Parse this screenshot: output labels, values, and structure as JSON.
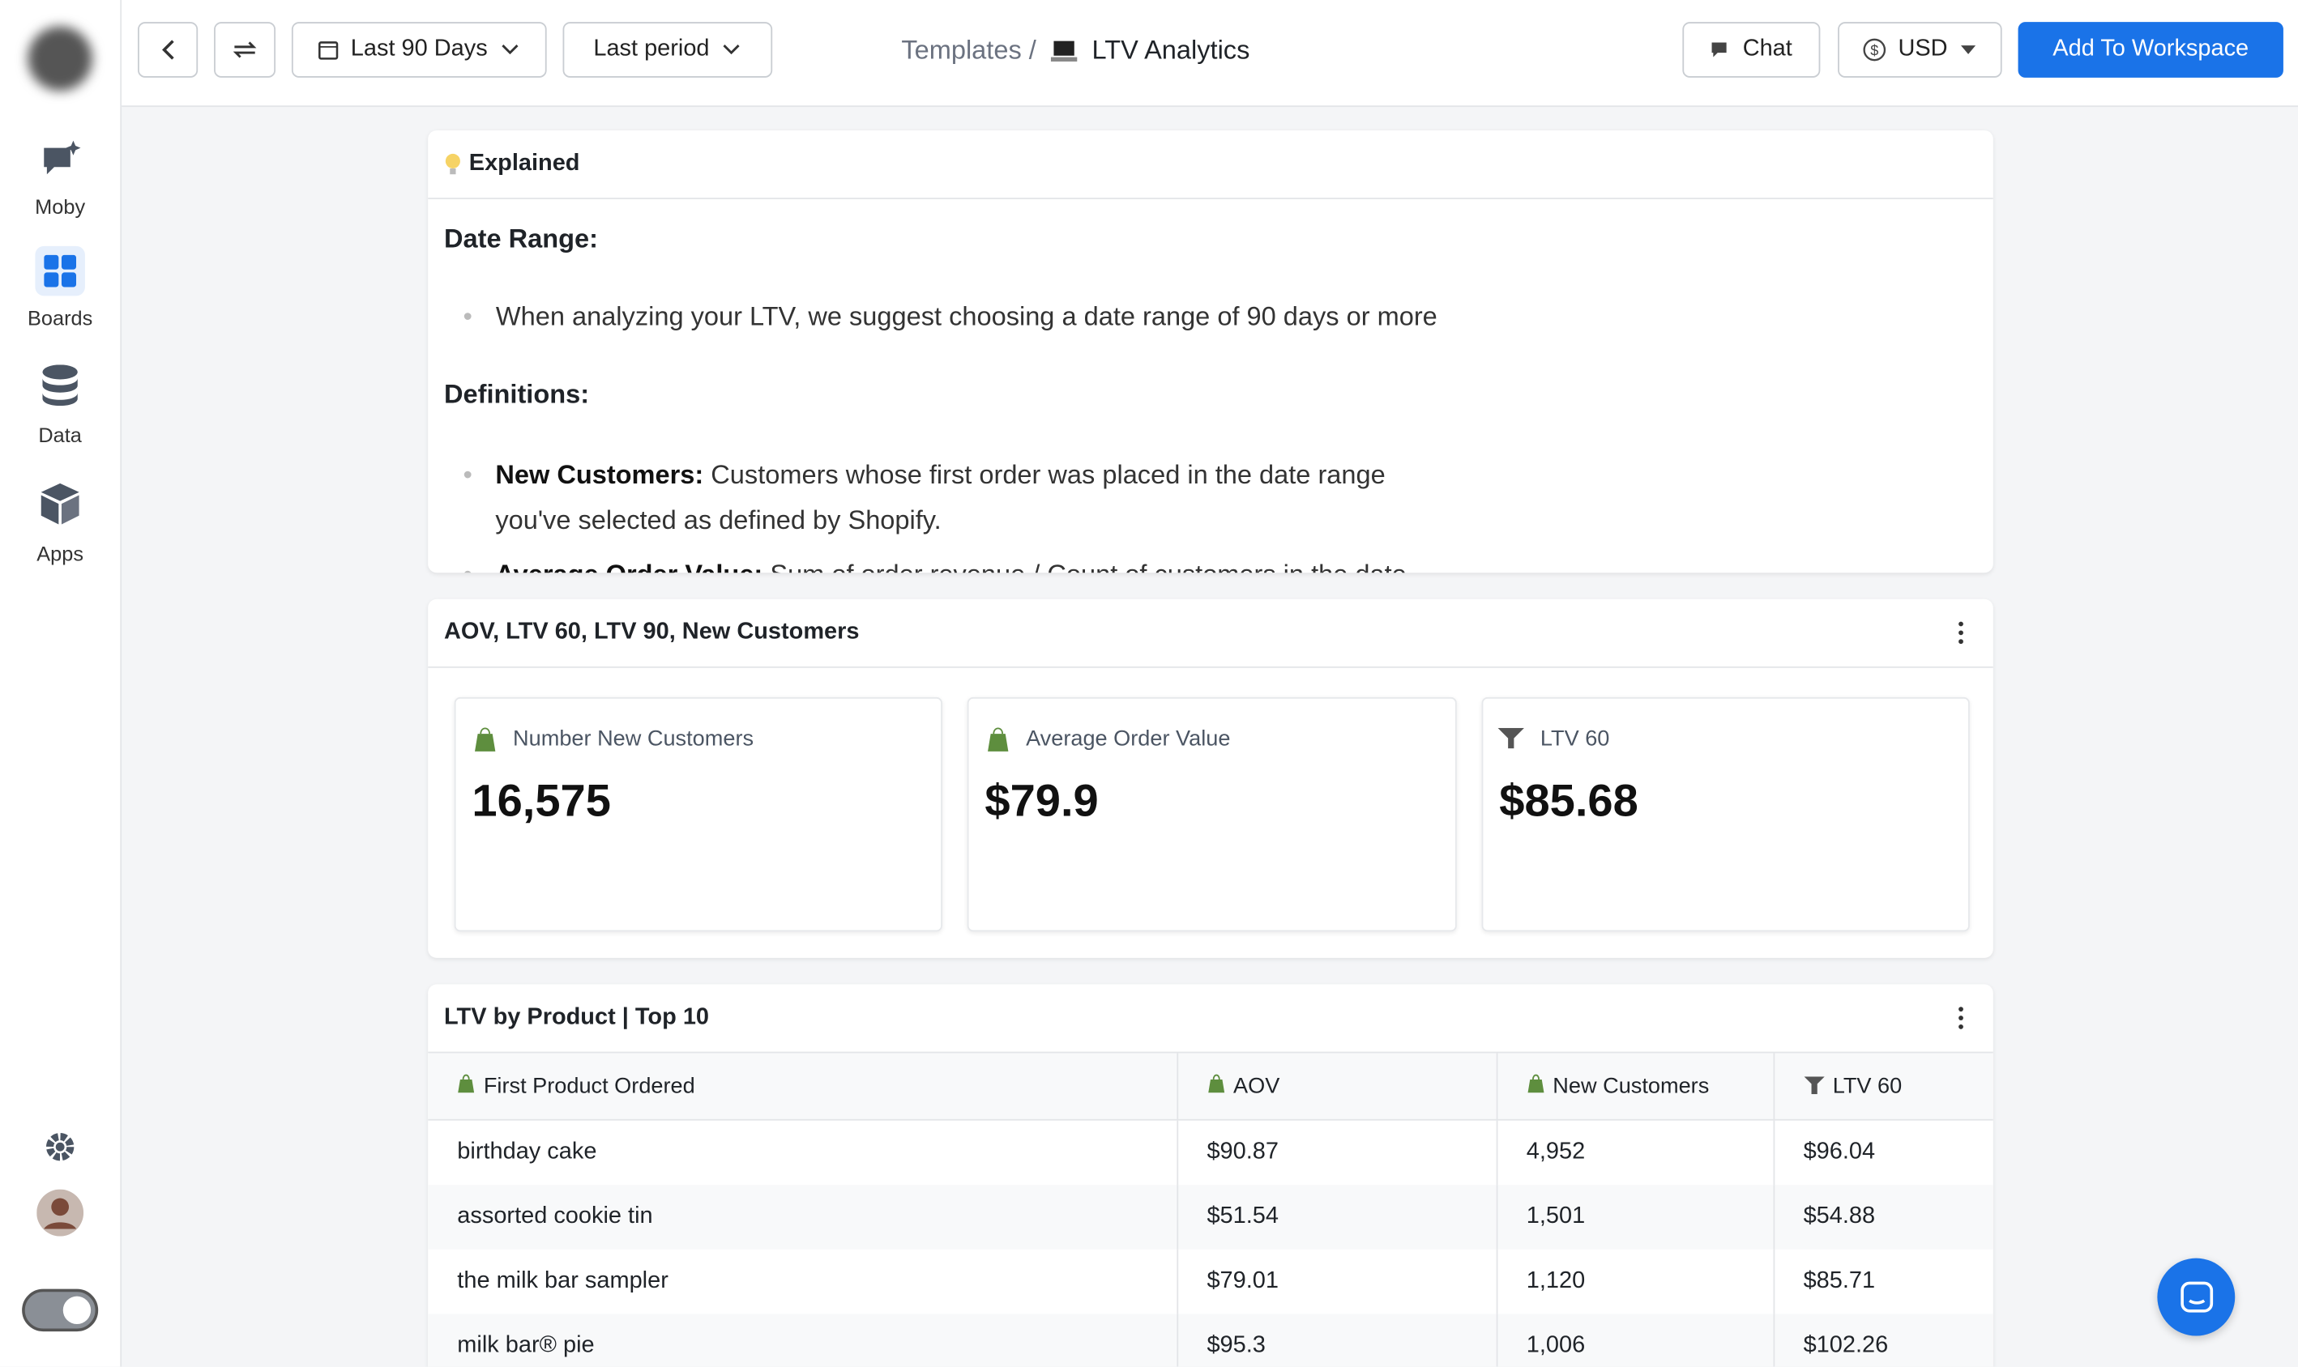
{
  "sidebar": {
    "items": [
      "Moby",
      "Boards",
      "Data",
      "Apps"
    ]
  },
  "toolbar": {
    "date_range": "Last 90 Days",
    "compare": "Last period",
    "chat": "Chat",
    "currency": "USD",
    "add_button": "Add To Workspace"
  },
  "breadcrumb": {
    "parent": "Templates /",
    "current": "LTV Analytics"
  },
  "explained": {
    "title": "Explained",
    "date_range_heading": "Date Range:",
    "date_range_text": "When analyzing your LTV, we suggest choosing a date range of 90 days or more",
    "definitions_heading": "Definitions:",
    "definitions": [
      {
        "term": "New Customers:",
        "text": "Customers whose first order was placed in the date range you've selected as defined by Shopify."
      },
      {
        "term": "Average Order Value:",
        "text": "Sum of order revenue / Count of customers in the date"
      }
    ]
  },
  "kpis": {
    "title": "AOV, LTV 60, LTV 90, New Customers",
    "cards": [
      {
        "label": "Number New Customers",
        "value": "16,575"
      },
      {
        "label": "Average Order Value",
        "value": "$79.9"
      },
      {
        "label": "LTV 60",
        "value": "$85.68"
      }
    ]
  },
  "table": {
    "title": "LTV by Product | Top 10",
    "columns": [
      "First Product Ordered",
      "AOV",
      "New Customers",
      "LTV 60"
    ],
    "rows": [
      [
        "birthday cake",
        "$90.87",
        "4,952",
        "$96.04"
      ],
      [
        "assorted cookie tin",
        "$51.54",
        "1,501",
        "$54.88"
      ],
      [
        "the milk bar sampler",
        "$79.01",
        "1,120",
        "$85.71"
      ],
      [
        "milk bar® pie",
        "$95.3",
        "1,006",
        "$102.26"
      ]
    ]
  }
}
